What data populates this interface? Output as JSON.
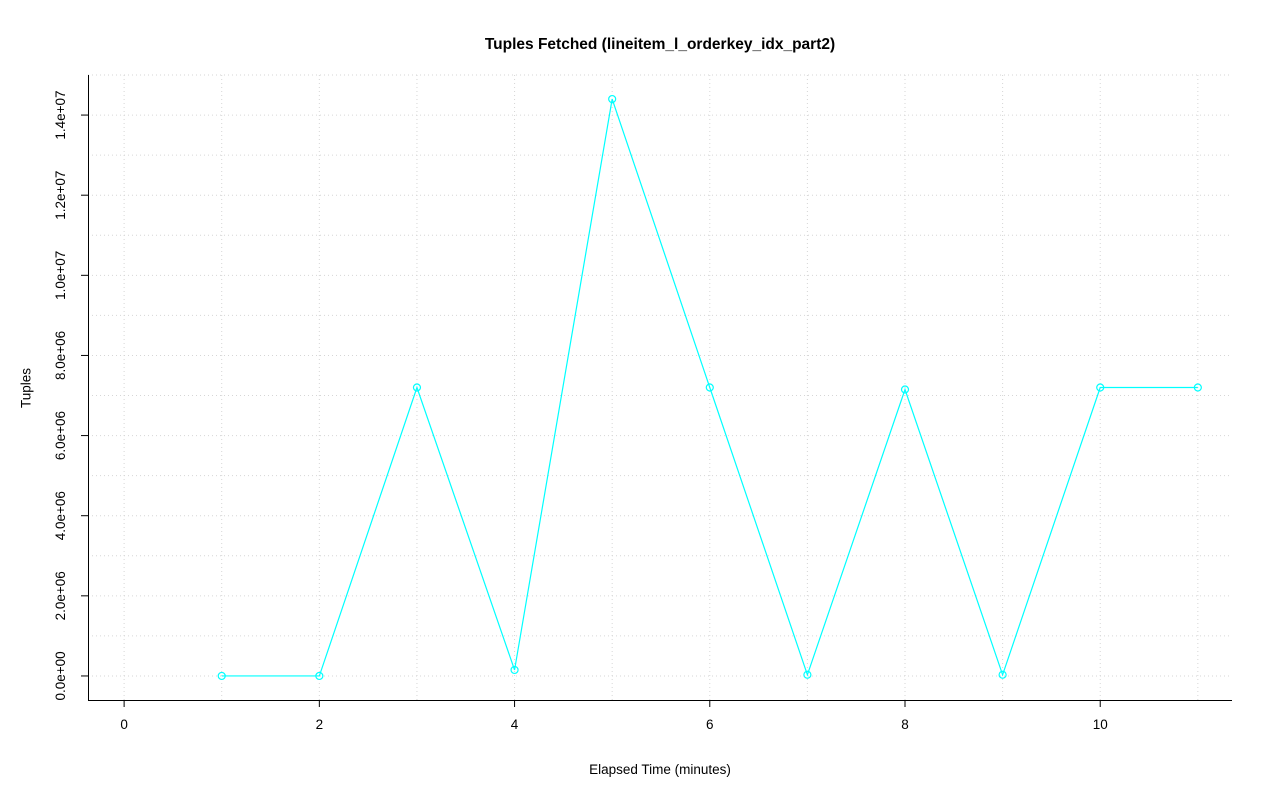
{
  "chart_data": {
    "type": "line",
    "title": "Tuples Fetched (lineitem_l_orderkey_idx_part2)",
    "xlabel": "Elapsed Time (minutes)",
    "ylabel": "Tuples",
    "x": [
      1,
      2,
      3,
      4,
      5,
      6,
      7,
      8,
      9,
      10,
      11
    ],
    "y": [
      0,
      0,
      7200000,
      150000,
      14400000,
      7200000,
      30000,
      7150000,
      30000,
      7200000,
      7200000
    ],
    "xlim": [
      -0.37,
      11.35
    ],
    "ylim": [
      -600000,
      15000000
    ],
    "x_ticks": [
      0,
      2,
      4,
      6,
      8,
      10
    ],
    "x_tick_labels": [
      "0",
      "2",
      "4",
      "6",
      "8",
      "10"
    ],
    "y_ticks": [
      0,
      2000000,
      4000000,
      6000000,
      8000000,
      10000000,
      12000000,
      14000000
    ],
    "y_tick_labels": [
      "0.0e+00",
      "2.0e+06",
      "4.0e+06",
      "6.0e+06",
      "8.0e+06",
      "1.0e+07",
      "1.2e+07",
      "1.4e+07"
    ],
    "grid": {
      "x_step": 1,
      "y_step": 1000000,
      "color": "#d6d6d6",
      "style": "dotted"
    },
    "line_color": "#00ffff",
    "marker": "open-circle",
    "axis_color": "#000000",
    "legend": "none"
  }
}
